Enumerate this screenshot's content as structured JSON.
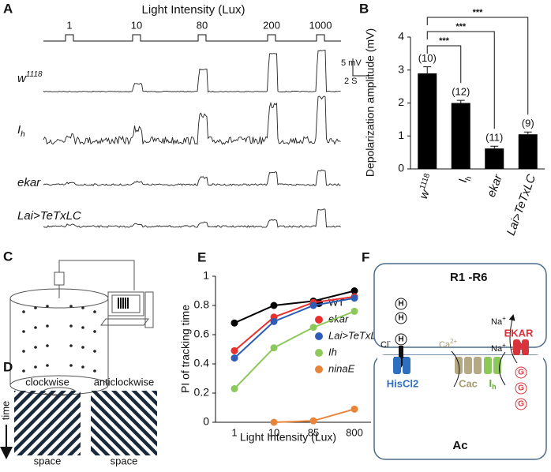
{
  "panels": {
    "A": {
      "label": "A",
      "title": "Light Intensity  (Lux)",
      "steps": [
        "1",
        "10",
        "80",
        "200",
        "1000"
      ],
      "scale_mv": "5 mV",
      "scale_s": "2 S",
      "traces": [
        {
          "text": "w",
          "sup": "1118"
        },
        {
          "text": "I",
          "sub": "h"
        },
        {
          "text": "ekar"
        },
        {
          "text": "Lai>TeTxLC"
        }
      ]
    },
    "B": {
      "label": "B"
    },
    "C": {
      "label": "C"
    },
    "D": {
      "label": "D",
      "left": "clockwise",
      "right": "anticlockwise",
      "time": "time",
      "space_left": "space",
      "space_right": "space"
    },
    "E": {
      "label": "E"
    },
    "F": {
      "label": "F",
      "top": "R1 -R6",
      "bottom": "Ac",
      "ekar": "EKAR",
      "hiscl2": "HisCl2",
      "cac": "Cac",
      "ih": {
        "text": "I",
        "sub": "h"
      },
      "cl": {
        "text": "Cl",
        "sup": "-"
      },
      "ca": {
        "text": "Ca",
        "sup": "2+"
      },
      "na1": {
        "text": "Na",
        "sup": "+"
      },
      "na2": {
        "text": "Na",
        "sup": "+"
      },
      "h": "H",
      "g": "G"
    }
  },
  "chart_data": [
    {
      "type": "bar",
      "ylabel": "Depolarization amplitude (mV)",
      "categories": [
        {
          "text": "w",
          "sup": "1118"
        },
        {
          "text": "I",
          "sub": "h"
        },
        {
          "text": "ekar"
        },
        {
          "text": "Lai>TeTxLC"
        }
      ],
      "values": [
        2.9,
        2.0,
        0.62,
        1.05
      ],
      "errors": [
        0.2,
        0.08,
        0.07,
        0.07
      ],
      "n_labels": [
        "(10)",
        "(12)",
        "(11)",
        "(9)"
      ],
      "significance": [
        "***",
        "***",
        "***"
      ],
      "color": "#000000",
      "ylim": [
        0,
        4
      ],
      "yticks": [
        0,
        1,
        2,
        3,
        4
      ]
    },
    {
      "type": "line",
      "ylabel": "PI of tracking time",
      "xlabel": "Light Intensity (Lux)",
      "categories": [
        "1",
        "10",
        "85",
        "800"
      ],
      "ylim": [
        0,
        1
      ],
      "yticks": [
        0,
        0.2,
        0.4,
        0.6,
        0.8,
        1
      ],
      "series": [
        {
          "name": "WT",
          "color": "#000000",
          "values": [
            0.68,
            0.8,
            0.83,
            0.9
          ]
        },
        {
          "name": "ekar",
          "color": "#e8302e",
          "values": [
            0.49,
            0.72,
            0.82,
            0.86
          ]
        },
        {
          "name": "Lai>TeTxLC",
          "color": "#2f5db5",
          "values": [
            0.44,
            0.69,
            0.8,
            0.85
          ]
        },
        {
          "name": "Ih",
          "color": "#8dc85a",
          "values": [
            0.23,
            0.51,
            0.65,
            0.76
          ]
        },
        {
          "name": "ninaE",
          "color": "#e8853a",
          "values": [
            null,
            0.0,
            0.01,
            0.09
          ]
        }
      ]
    }
  ]
}
